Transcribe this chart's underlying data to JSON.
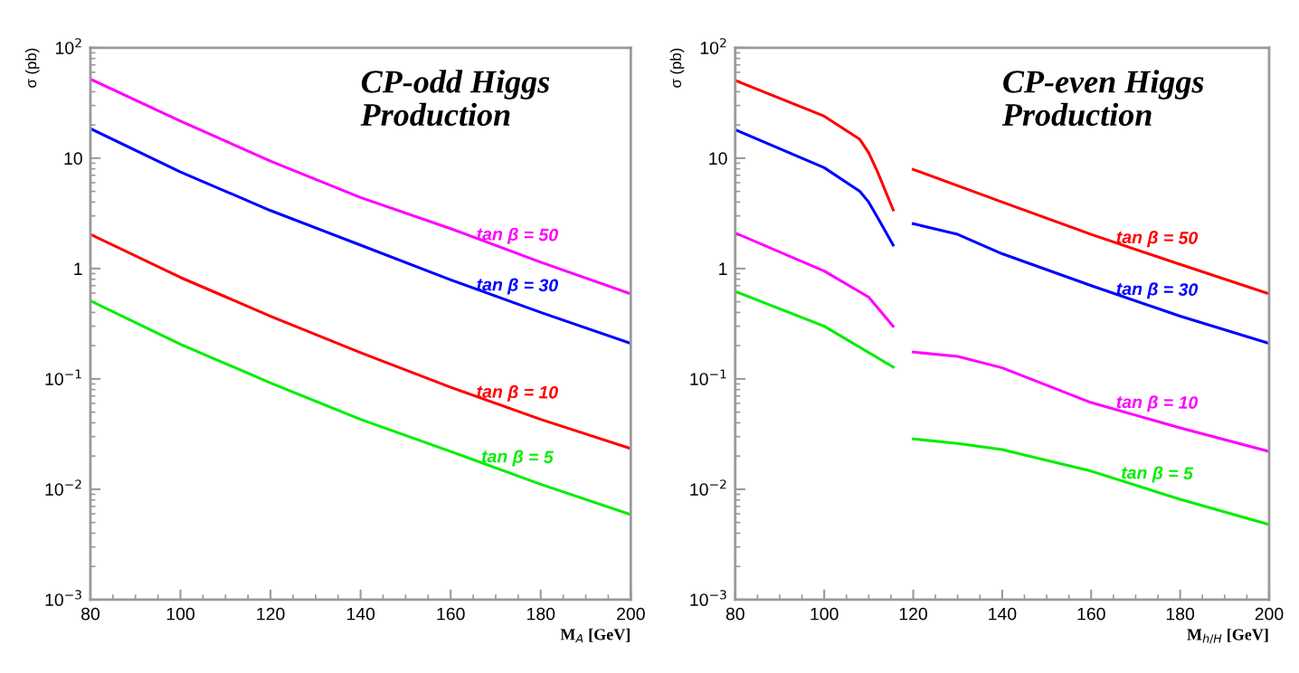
{
  "chart_data": [
    {
      "type": "line",
      "title": "CP-odd Higgs\nProduction",
      "xlabel": "M$_{A}$ [GeV]",
      "ylabel": "σ (pb)",
      "log": "y",
      "grid": false,
      "legend": false,
      "xlim": [
        80,
        200
      ],
      "xticks": [
        80,
        100,
        120,
        140,
        160,
        180,
        200
      ],
      "ylim": [
        0.001,
        100
      ],
      "yticks": [
        {
          "value": 0.001,
          "label": "10$^{−3}$"
        },
        {
          "value": 0.01,
          "label": "10$^{−2}$"
        },
        {
          "value": 0.1,
          "label": "10$^{−1}$"
        },
        {
          "value": 1,
          "label": "1"
        },
        {
          "value": 10,
          "label": "10"
        },
        {
          "value": 100,
          "label": "10$^{2}$"
        }
      ],
      "x": [
        80,
        100,
        120,
        140,
        160,
        180,
        200
      ],
      "series": [
        {
          "name": "tan β = 50",
          "color": "#ff00ff",
          "values": [
            52,
            21.7,
            9.4,
            4.4,
            2.3,
            1.14,
            0.59
          ]
        },
        {
          "name": "tan β = 30",
          "color": "#0000ff",
          "values": [
            18.5,
            7.5,
            3.35,
            1.63,
            0.79,
            0.4,
            0.21
          ]
        },
        {
          "name": "tan β = 10",
          "color": "#ff0000",
          "values": [
            2.04,
            0.83,
            0.37,
            0.173,
            0.084,
            0.043,
            0.0234
          ]
        },
        {
          "name": "tan β = 5",
          "color": "#00ee00",
          "values": [
            0.51,
            0.206,
            0.092,
            0.043,
            0.022,
            0.0111,
            0.0059
          ]
        }
      ]
    },
    {
      "type": "line",
      "title": "CP-even Higgs\nProduction",
      "xlabel": "M$_{h/H}$ [GeV]",
      "ylabel": "σ (pb)",
      "log": "y",
      "grid": false,
      "legend": false,
      "xlim": [
        80,
        200
      ],
      "xticks": [
        80,
        100,
        120,
        140,
        160,
        180,
        200
      ],
      "ylim": [
        0.001,
        100
      ],
      "yticks": [
        {
          "value": 0.001,
          "label": "10$^{−3}$"
        },
        {
          "value": 0.01,
          "label": "10$^{−2}$"
        },
        {
          "value": 0.1,
          "label": "10$^{−1}$"
        },
        {
          "value": 1,
          "label": "1"
        },
        {
          "value": 10,
          "label": "10"
        },
        {
          "value": 100,
          "label": "10$^{2}$"
        }
      ],
      "series": [
        {
          "name": "tan β = 50",
          "color": "#ff0000",
          "x": [
            80,
            100,
            108,
            110,
            112,
            115.5,
            117.5,
            120,
            140,
            160,
            180,
            200
          ],
          "values": [
            50.5,
            24,
            14.8,
            11.2,
            7.5,
            3.4,
            null,
            7.9,
            4.0,
            2.04,
            1.09,
            0.59
          ]
        },
        {
          "name": "tan β = 30",
          "color": "#0000ff",
          "x": [
            80,
            100,
            108,
            110,
            112,
            115.5,
            117.5,
            120,
            130,
            140,
            160,
            180,
            200
          ],
          "values": [
            18.1,
            8.2,
            5.0,
            4.0,
            2.9,
            1.63,
            null,
            2.55,
            2.04,
            1.36,
            0.7,
            0.37,
            0.21
          ]
        },
        {
          "name": "tan β = 10",
          "color": "#ff00ff",
          "x": [
            80,
            100,
            110,
            115.5,
            117.5,
            120,
            130,
            140,
            160,
            180,
            200
          ],
          "values": [
            2.1,
            0.95,
            0.55,
            0.3,
            null,
            0.175,
            0.16,
            0.126,
            0.061,
            0.036,
            0.022
          ]
        },
        {
          "name": "tan β = 5",
          "color": "#00ee00",
          "x": [
            80,
            100,
            115.5,
            117.5,
            120,
            130,
            140,
            160,
            180,
            200
          ],
          "values": [
            0.62,
            0.3,
            0.128,
            null,
            0.0286,
            0.026,
            0.0229,
            0.0146,
            0.0081,
            0.0048
          ]
        }
      ]
    }
  ]
}
